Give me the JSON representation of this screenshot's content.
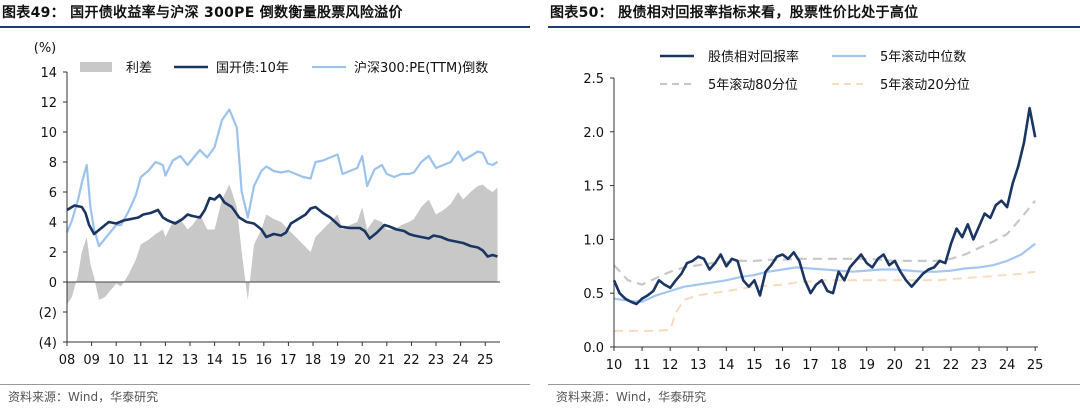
{
  "left": {
    "title": "图表49：  国开债收益率与沪深 300PE 倒数衡量股票风险溢价",
    "source": "资料来源：Wind，华泰研究"
  },
  "right": {
    "title": "图表50：  股债相对回报率指标来看，股票性价比处于高位",
    "source": "资料来源：Wind，华泰研究"
  },
  "chart_data": [
    {
      "type": "line",
      "unit_label": "(%)",
      "ylim": [
        -4,
        14
      ],
      "yticks": [
        14,
        12,
        10,
        8,
        6,
        4,
        2,
        0,
        -2,
        -4
      ],
      "ytick_labels": [
        "14",
        "12",
        "10",
        "8",
        "6",
        "4",
        "2",
        "0",
        "(2)",
        "(4)"
      ],
      "xlim": [
        2008.0,
        2025.6
      ],
      "xticks": [
        2008,
        2009,
        2010,
        2011,
        2012,
        2013,
        2014,
        2015,
        2016,
        2017,
        2018,
        2019,
        2020,
        2021,
        2022,
        2023,
        2024,
        2025
      ],
      "xtick_labels": [
        "08",
        "09",
        "10",
        "11",
        "12",
        "13",
        "14",
        "15",
        "16",
        "17",
        "18",
        "19",
        "20",
        "21",
        "22",
        "23",
        "24",
        "25"
      ],
      "legend_placement": "top",
      "colors": {
        "spread": "#c8c8c8",
        "bond": "#1b3563",
        "pe": "#9cc3ee"
      },
      "series": [
        {
          "name": "利差",
          "style": "area",
          "x": [
            2008.0,
            2008.2,
            2008.45,
            2008.6,
            2008.8,
            2008.95,
            2009.1,
            2009.3,
            2009.55,
            2009.8,
            2010.0,
            2010.2,
            2010.5,
            2010.8,
            2011.0,
            2011.3,
            2011.6,
            2011.9,
            2012.0,
            2012.3,
            2012.6,
            2012.9,
            2013.1,
            2013.4,
            2013.7,
            2014.0,
            2014.3,
            2014.6,
            2014.9,
            2015.1,
            2015.35,
            2015.6,
            2015.9,
            2016.1,
            2016.4,
            2016.7,
            2017.0,
            2017.3,
            2017.6,
            2017.9,
            2018.1,
            2018.4,
            2018.7,
            2019.0,
            2019.2,
            2019.5,
            2019.8,
            2020.0,
            2020.2,
            2020.5,
            2020.8,
            2021.0,
            2021.3,
            2021.6,
            2021.9,
            2022.1,
            2022.4,
            2022.7,
            2023.0,
            2023.3,
            2023.6,
            2023.9,
            2024.1,
            2024.4,
            2024.7,
            2024.9,
            2025.1,
            2025.3,
            2025.5
          ],
          "values": [
            -1.5,
            -1.0,
            0.5,
            2.0,
            3.0,
            1.2,
            0.3,
            -1.2,
            -1.0,
            -0.5,
            -0.1,
            -0.3,
            0.5,
            1.5,
            2.5,
            2.8,
            3.2,
            3.5,
            3.0,
            4.0,
            4.2,
            3.5,
            3.8,
            4.5,
            3.5,
            3.5,
            5.5,
            6.5,
            5.0,
            2.0,
            -1.2,
            2.5,
            3.5,
            4.5,
            4.2,
            4.0,
            3.5,
            3.0,
            2.5,
            2.0,
            3.0,
            3.5,
            4.0,
            4.5,
            3.5,
            3.8,
            4.0,
            5.0,
            3.5,
            4.2,
            4.0,
            3.5,
            3.5,
            3.8,
            4.0,
            4.2,
            5.0,
            5.5,
            4.5,
            4.8,
            5.2,
            6.0,
            5.5,
            6.0,
            6.4,
            6.5,
            6.2,
            6.0,
            6.3
          ]
        },
        {
          "name": "国开债:10年",
          "style": "line",
          "x": [
            2008.0,
            2008.3,
            2008.6,
            2008.75,
            2008.9,
            2009.1,
            2009.4,
            2009.7,
            2010.0,
            2010.3,
            2010.6,
            2010.9,
            2011.1,
            2011.4,
            2011.7,
            2011.9,
            2012.1,
            2012.4,
            2012.7,
            2012.9,
            2013.1,
            2013.4,
            2013.6,
            2013.8,
            2014.0,
            2014.2,
            2014.4,
            2014.7,
            2015.0,
            2015.3,
            2015.6,
            2015.9,
            2016.1,
            2016.4,
            2016.7,
            2016.9,
            2017.1,
            2017.4,
            2017.7,
            2017.9,
            2018.1,
            2018.4,
            2018.7,
            2018.9,
            2019.1,
            2019.5,
            2019.9,
            2020.1,
            2020.3,
            2020.6,
            2020.9,
            2021.1,
            2021.4,
            2021.7,
            2021.9,
            2022.1,
            2022.4,
            2022.7,
            2022.9,
            2023.2,
            2023.5,
            2023.8,
            2024.1,
            2024.4,
            2024.7,
            2024.9,
            2025.1,
            2025.3,
            2025.5
          ],
          "values": [
            4.8,
            5.1,
            5.0,
            4.6,
            3.8,
            3.2,
            3.6,
            4.0,
            3.9,
            4.1,
            4.2,
            4.3,
            4.5,
            4.6,
            4.8,
            4.3,
            4.1,
            3.9,
            4.2,
            4.5,
            4.4,
            4.3,
            4.8,
            5.6,
            5.5,
            5.8,
            5.3,
            5.0,
            4.3,
            4.0,
            3.9,
            3.5,
            3.0,
            3.2,
            3.1,
            3.3,
            3.9,
            4.2,
            4.5,
            4.9,
            5.0,
            4.6,
            4.3,
            4.0,
            3.7,
            3.6,
            3.6,
            3.4,
            2.9,
            3.3,
            3.8,
            3.7,
            3.5,
            3.4,
            3.2,
            3.1,
            3.0,
            2.9,
            3.1,
            3.0,
            2.8,
            2.7,
            2.6,
            2.4,
            2.3,
            2.1,
            1.7,
            1.8,
            1.7
          ]
        },
        {
          "name": "沪深300:PE(TTM)倒数",
          "style": "line",
          "x": [
            2008.0,
            2008.2,
            2008.45,
            2008.6,
            2008.8,
            2008.95,
            2009.1,
            2009.3,
            2009.55,
            2009.8,
            2010.0,
            2010.2,
            2010.5,
            2010.8,
            2011.0,
            2011.3,
            2011.6,
            2011.9,
            2012.0,
            2012.3,
            2012.6,
            2012.9,
            2013.1,
            2013.4,
            2013.7,
            2014.0,
            2014.3,
            2014.6,
            2014.9,
            2015.1,
            2015.35,
            2015.6,
            2015.9,
            2016.1,
            2016.4,
            2016.7,
            2017.0,
            2017.3,
            2017.6,
            2017.9,
            2018.1,
            2018.4,
            2018.7,
            2019.0,
            2019.2,
            2019.5,
            2019.8,
            2020.0,
            2020.2,
            2020.5,
            2020.8,
            2021.0,
            2021.3,
            2021.6,
            2021.9,
            2022.1,
            2022.4,
            2022.7,
            2023.0,
            2023.3,
            2023.6,
            2023.9,
            2024.1,
            2024.4,
            2024.7,
            2024.9,
            2025.1,
            2025.3,
            2025.5
          ],
          "values": [
            3.3,
            4.1,
            5.5,
            6.6,
            7.8,
            5.0,
            3.5,
            2.4,
            2.9,
            3.4,
            3.8,
            3.8,
            4.7,
            5.8,
            7.0,
            7.4,
            8.0,
            7.8,
            7.1,
            8.1,
            8.4,
            7.8,
            8.2,
            8.8,
            8.3,
            9.0,
            10.8,
            11.5,
            10.3,
            6.0,
            4.3,
            6.4,
            7.4,
            7.7,
            7.4,
            7.3,
            7.4,
            7.2,
            7.0,
            6.9,
            8.0,
            8.1,
            8.3,
            8.5,
            7.2,
            7.4,
            7.6,
            8.4,
            6.4,
            7.5,
            7.8,
            7.2,
            7.0,
            7.2,
            7.2,
            7.3,
            8.0,
            8.4,
            7.6,
            7.8,
            8.0,
            8.7,
            8.1,
            8.4,
            8.7,
            8.6,
            7.9,
            7.8,
            8.0
          ]
        }
      ]
    },
    {
      "type": "line",
      "ylim": [
        0.0,
        2.5
      ],
      "yticks": [
        2.5,
        2.0,
        1.5,
        1.0,
        0.5,
        0.0
      ],
      "ytick_labels": [
        "2.5",
        "2.0",
        "1.5",
        "1.0",
        "0.5",
        "0.0"
      ],
      "xlim": [
        2010.0,
        2025.1
      ],
      "xticks": [
        2010,
        2011,
        2012,
        2013,
        2014,
        2015,
        2016,
        2017,
        2018,
        2019,
        2020,
        2021,
        2022,
        2023,
        2024,
        2025
      ],
      "xtick_labels": [
        "10",
        "11",
        "12",
        "13",
        "14",
        "15",
        "16",
        "17",
        "18",
        "19",
        "20",
        "21",
        "22",
        "23",
        "24",
        "25"
      ],
      "legend_placement": "top",
      "colors": {
        "ratio": "#1b3563",
        "median": "#a3c7f0",
        "p80": "#c8c8c8",
        "p20": "#f8dcc0"
      },
      "series": [
        {
          "name": "股债相对回报率",
          "style": "solid",
          "x": [
            2010.0,
            2010.2,
            2010.4,
            2010.6,
            2010.8,
            2011.0,
            2011.2,
            2011.4,
            2011.6,
            2011.8,
            2012.0,
            2012.2,
            2012.4,
            2012.6,
            2012.8,
            2013.0,
            2013.2,
            2013.4,
            2013.6,
            2013.8,
            2014.0,
            2014.2,
            2014.4,
            2014.6,
            2014.8,
            2015.0,
            2015.2,
            2015.4,
            2015.6,
            2015.8,
            2016.0,
            2016.2,
            2016.4,
            2016.6,
            2016.8,
            2017.0,
            2017.2,
            2017.4,
            2017.6,
            2017.8,
            2018.0,
            2018.2,
            2018.4,
            2018.6,
            2018.8,
            2019.0,
            2019.2,
            2019.4,
            2019.6,
            2019.8,
            2020.0,
            2020.2,
            2020.4,
            2020.6,
            2020.8,
            2021.0,
            2021.2,
            2021.4,
            2021.6,
            2021.8,
            2022.0,
            2022.2,
            2022.4,
            2022.6,
            2022.8,
            2023.0,
            2023.2,
            2023.4,
            2023.6,
            2023.8,
            2024.0,
            2024.2,
            2024.4,
            2024.6,
            2024.8,
            2025.0
          ],
          "values": [
            0.62,
            0.5,
            0.45,
            0.42,
            0.4,
            0.45,
            0.48,
            0.52,
            0.62,
            0.58,
            0.55,
            0.62,
            0.68,
            0.78,
            0.8,
            0.84,
            0.82,
            0.72,
            0.78,
            0.86,
            0.75,
            0.82,
            0.8,
            0.62,
            0.56,
            0.62,
            0.48,
            0.7,
            0.76,
            0.84,
            0.86,
            0.82,
            0.88,
            0.8,
            0.62,
            0.5,
            0.58,
            0.62,
            0.52,
            0.5,
            0.7,
            0.62,
            0.74,
            0.8,
            0.86,
            0.78,
            0.74,
            0.82,
            0.86,
            0.76,
            0.8,
            0.7,
            0.62,
            0.56,
            0.62,
            0.68,
            0.72,
            0.74,
            0.8,
            0.78,
            0.96,
            1.1,
            1.02,
            1.14,
            1.0,
            1.12,
            1.24,
            1.2,
            1.32,
            1.36,
            1.3,
            1.52,
            1.68,
            1.9,
            2.22,
            1.95
          ]
        },
        {
          "name": "5年滚动中位数",
          "style": "solid",
          "x": [
            2010.0,
            2010.5,
            2011.0,
            2011.5,
            2012.0,
            2012.5,
            2013.0,
            2013.5,
            2014.0,
            2014.5,
            2015.0,
            2015.5,
            2016.0,
            2016.5,
            2017.0,
            2017.5,
            2018.0,
            2018.5,
            2019.0,
            2019.5,
            2020.0,
            2020.5,
            2021.0,
            2021.5,
            2022.0,
            2022.5,
            2023.0,
            2023.5,
            2024.0,
            2024.5,
            2025.0
          ],
          "values": [
            0.45,
            0.43,
            0.42,
            0.48,
            0.52,
            0.56,
            0.58,
            0.6,
            0.62,
            0.65,
            0.67,
            0.7,
            0.72,
            0.74,
            0.73,
            0.72,
            0.71,
            0.7,
            0.71,
            0.72,
            0.72,
            0.71,
            0.7,
            0.7,
            0.71,
            0.73,
            0.74,
            0.76,
            0.8,
            0.86,
            0.96
          ]
        },
        {
          "name": "5年滚动80分位",
          "style": "dashed",
          "x": [
            2010.0,
            2010.5,
            2011.0,
            2011.5,
            2012.0,
            2012.5,
            2013.0,
            2013.5,
            2014.0,
            2014.5,
            2015.0,
            2015.5,
            2016.0,
            2016.5,
            2017.0,
            2017.5,
            2018.0,
            2018.5,
            2019.0,
            2019.5,
            2020.0,
            2020.5,
            2021.0,
            2021.5,
            2022.0,
            2022.5,
            2023.0,
            2023.5,
            2024.0,
            2024.5,
            2025.0
          ],
          "values": [
            0.76,
            0.62,
            0.58,
            0.64,
            0.7,
            0.74,
            0.76,
            0.78,
            0.79,
            0.8,
            0.8,
            0.81,
            0.81,
            0.82,
            0.82,
            0.82,
            0.82,
            0.82,
            0.82,
            0.81,
            0.8,
            0.8,
            0.8,
            0.8,
            0.82,
            0.86,
            0.92,
            0.98,
            1.05,
            1.2,
            1.36
          ]
        },
        {
          "name": "5年滚动20分位",
          "style": "dashed",
          "x": [
            2010.0,
            2010.5,
            2011.0,
            2011.5,
            2012.0,
            2012.2,
            2012.5,
            2013.0,
            2013.5,
            2014.0,
            2014.5,
            2015.0,
            2015.5,
            2016.0,
            2016.5,
            2017.0,
            2017.5,
            2018.0,
            2018.5,
            2019.0,
            2019.5,
            2020.0,
            2020.5,
            2021.0,
            2021.5,
            2022.0,
            2022.5,
            2023.0,
            2023.5,
            2024.0,
            2024.5,
            2025.0
          ],
          "values": [
            0.15,
            0.15,
            0.15,
            0.15,
            0.16,
            0.32,
            0.44,
            0.48,
            0.5,
            0.52,
            0.54,
            0.56,
            0.57,
            0.58,
            0.6,
            0.61,
            0.62,
            0.62,
            0.62,
            0.62,
            0.62,
            0.62,
            0.62,
            0.62,
            0.62,
            0.63,
            0.64,
            0.65,
            0.66,
            0.67,
            0.68,
            0.7
          ]
        }
      ]
    }
  ]
}
